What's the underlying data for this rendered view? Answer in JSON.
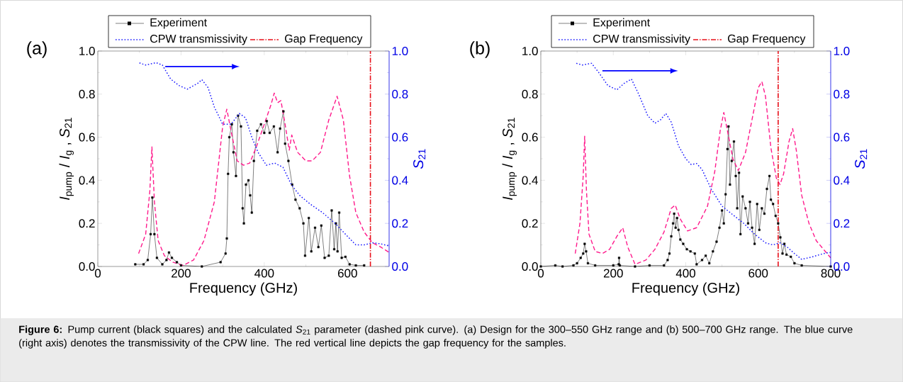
{
  "chart_data": [
    {
      "type": "line",
      "xlabel": "Frequency (GHz)",
      "ylabel": "*I*$_{pump}$ / *I*$_{g}$ , *S*$_{21}$",
      "y2label": "*S*$_{21}$",
      "legend": "top",
      "annotations": [
        "(a)",
        "**Figure 6:** Pump current (black squares) and the calculated *S*$_{21}$ parameter (dashed pink curve). (a) Design for the 300–550 GHz range and (b) 500–700 GHz range. The blue curve (right axis) denotes the transmissivity of the CPW line. The red vertical line depicts the gap frequency for the samples."
      ],
      "xlim": [
        0,
        700
      ],
      "xticks": [
        0,
        200,
        400,
        600
      ],
      "ylim": [
        0,
        1
      ],
      "yticks": [
        {
          "value": 0,
          "label": "0.0"
        },
        {
          "value": 0.2,
          "label": "0.2"
        },
        {
          "value": 0.4,
          "label": "0.4"
        },
        {
          "value": 0.6,
          "label": "0.6"
        },
        {
          "value": 0.8,
          "label": "0.8"
        },
        {
          "value": 1,
          "label": "1.0"
        }
      ],
      "y2lim": [
        0,
        1
      ],
      "y2ticks": [
        {
          "value": 0,
          "label": "0.0"
        },
        {
          "value": 0.2,
          "label": "0.2"
        },
        {
          "value": 0.4,
          "label": "0.4"
        },
        {
          "value": 0.6,
          "label": "0.6"
        },
        {
          "value": 0.8,
          "label": "0.8"
        },
        {
          "value": 1,
          "label": "1.0"
        }
      ],
      "ref_lines": [
        {
          "axis": "x",
          "value": 655,
          "label": "Gap Frequency",
          "color": "#e8101a",
          "line_style": "dashdot"
        }
      ],
      "series": [
        {
          "name": "Experiment",
          "color": "#000000",
          "marker": "square",
          "line_style": "solid",
          "x": [
            90,
            110,
            120,
            127,
            131,
            136,
            142,
            155,
            165,
            171,
            178,
            190,
            200,
            250,
            295,
            307,
            310,
            313,
            316,
            322,
            326,
            332,
            337,
            344,
            348,
            351,
            356,
            362,
            366,
            370,
            375,
            383,
            392,
            400,
            406,
            413,
            423,
            432,
            438,
            446,
            450,
            458,
            467,
            475,
            485,
            494,
            498,
            507,
            513,
            522,
            530,
            537,
            545,
            555,
            562,
            568,
            572,
            576,
            580,
            586,
            595,
            605,
            620,
            640
          ],
          "values": [
            0.01,
            0.01,
            0.03,
            0.15,
            0.32,
            0.15,
            0.04,
            0.01,
            0.03,
            0.065,
            0.04,
            0.02,
            0.005,
            0.0,
            0.02,
            0.06,
            0.13,
            0.43,
            0.6,
            0.66,
            0.53,
            0.42,
            0.7,
            0.65,
            0.27,
            0.2,
            0.38,
            0.4,
            0.33,
            0.25,
            0.49,
            0.63,
            0.66,
            0.62,
            0.675,
            0.62,
            0.65,
            0.53,
            0.64,
            0.72,
            0.57,
            0.49,
            0.38,
            0.31,
            0.27,
            0.2,
            0.05,
            0.225,
            0.07,
            0.18,
            0.09,
            0.19,
            0.04,
            0.05,
            0.26,
            0.08,
            0.2,
            0.07,
            0.25,
            0.04,
            0.045,
            0.01,
            0.005,
            0.005
          ]
        },
        {
          "color": "#ff1a8c",
          "marker": "none",
          "line_style": "dashed",
          "x": [
            98,
            115,
            125,
            130,
            136,
            145,
            160,
            180,
            205,
            230,
            255,
            280,
            300,
            310,
            320,
            335,
            350,
            365,
            380,
            400,
            416,
            424,
            432,
            440,
            450,
            460,
            466,
            480,
            500,
            515,
            535,
            555,
            575,
            590,
            605,
            620,
            640,
            660,
            680,
            700
          ],
          "values": [
            0.06,
            0.15,
            0.35,
            0.555,
            0.3,
            0.12,
            0.05,
            0.02,
            0.005,
            0.03,
            0.12,
            0.3,
            0.65,
            0.73,
            0.63,
            0.49,
            0.47,
            0.48,
            0.55,
            0.66,
            0.75,
            0.805,
            0.76,
            0.77,
            0.66,
            0.54,
            0.61,
            0.53,
            0.49,
            0.49,
            0.53,
            0.68,
            0.79,
            0.68,
            0.42,
            0.25,
            0.16,
            0.11,
            0.09,
            0.065
          ]
        },
        {
          "name": "CPW transmissivity",
          "color": "#1a1aff",
          "marker": "none",
          "line_style": "dotted",
          "axis": "y2",
          "x": [
            100,
            115,
            140,
            155,
            175,
            195,
            215,
            240,
            250,
            265,
            280,
            300,
            320,
            340,
            355,
            370,
            385,
            405,
            425,
            445,
            465,
            485,
            510,
            540,
            570,
            600,
            620,
            640,
            660,
            680,
            700
          ],
          "values": [
            0.945,
            0.935,
            0.946,
            0.935,
            0.87,
            0.84,
            0.823,
            0.85,
            0.867,
            0.83,
            0.74,
            0.66,
            0.66,
            0.71,
            0.69,
            0.6,
            0.53,
            0.47,
            0.48,
            0.46,
            0.38,
            0.33,
            0.29,
            0.25,
            0.2,
            0.14,
            0.1,
            0.1,
            0.11,
            0.105,
            0.095
          ]
        }
      ]
    },
    {
      "type": "line",
      "xlabel": "Frequency (GHz)",
      "ylabel": "*I*$_{pump}$ / *I*$_{g}$ , *S*$_{21}$",
      "y2label": "*S*$_{21}$",
      "legend": "top",
      "annotations": [
        "(b)"
      ],
      "xlim": [
        0,
        800
      ],
      "xticks": [
        0,
        200,
        400,
        600,
        800
      ],
      "ylim": [
        0,
        1
      ],
      "yticks": [
        {
          "value": 0,
          "label": "0.0"
        },
        {
          "value": 0.2,
          "label": "0.2"
        },
        {
          "value": 0.4,
          "label": "0.4"
        },
        {
          "value": 0.6,
          "label": "0.6"
        },
        {
          "value": 0.8,
          "label": "0.8"
        },
        {
          "value": 1,
          "label": "1.0"
        }
      ],
      "y2lim": [
        0,
        1
      ],
      "y2ticks": [
        {
          "value": 0,
          "label": "0.0"
        },
        {
          "value": 0.2,
          "label": "0.2"
        },
        {
          "value": 0.4,
          "label": "0.4"
        },
        {
          "value": 0.6,
          "label": "0.6"
        },
        {
          "value": 0.8,
          "label": "0.8"
        },
        {
          "value": 1,
          "label": "1.0"
        }
      ],
      "ref_lines": [
        {
          "axis": "x",
          "value": 655,
          "label": "Gap Frequency",
          "color": "#e8101a",
          "line_style": "dashdot"
        }
      ],
      "series": [
        {
          "name": "Experiment",
          "color": "#000000",
          "marker": "square",
          "line_style": "solid",
          "x": [
            0,
            40,
            60,
            90,
            100,
            110,
            117,
            121,
            125,
            130,
            150,
            200,
            215,
            216,
            218,
            260,
            300,
            340,
            350,
            355,
            360,
            365,
            368,
            372,
            376,
            380,
            385,
            393,
            403,
            413,
            425,
            430,
            445,
            455,
            465,
            475,
            485,
            493,
            500,
            505,
            510,
            515,
            518,
            522,
            527,
            533,
            538,
            542,
            547,
            551,
            557,
            565,
            572,
            577,
            583,
            590,
            597,
            603,
            610,
            617,
            624,
            631,
            635,
            641,
            648,
            655,
            661,
            667,
            672,
            678,
            690,
            700,
            720,
            800
          ],
          "values": [
            0.0,
            0.005,
            0.0,
            0.005,
            0.015,
            0.04,
            0.06,
            0.105,
            0.07,
            0.015,
            0.005,
            0.005,
            0.01,
            0.04,
            0.005,
            0.0,
            0.005,
            0.005,
            0.03,
            0.06,
            0.14,
            0.2,
            0.245,
            0.18,
            0.225,
            0.17,
            0.125,
            0.105,
            0.08,
            0.07,
            0.06,
            0.01,
            0.03,
            0.05,
            0.015,
            0.07,
            0.115,
            0.18,
            0.26,
            0.2,
            0.335,
            0.545,
            0.65,
            0.38,
            0.49,
            0.58,
            0.42,
            0.27,
            0.435,
            0.15,
            0.325,
            0.27,
            0.2,
            0.3,
            0.18,
            0.105,
            0.29,
            0.17,
            0.27,
            0.245,
            0.36,
            0.42,
            0.31,
            0.29,
            0.235,
            0.2,
            0.135,
            0.06,
            0.105,
            0.055,
            0.045,
            0.015,
            0.005,
            0.0
          ]
        },
        {
          "color": "#ff1a8c",
          "marker": "none",
          "line_style": "dashed",
          "x": [
            95,
            108,
            117,
            121,
            126,
            133,
            150,
            170,
            190,
            210,
            226,
            240,
            260,
            290,
            315,
            340,
            360,
            371,
            385,
            405,
            430,
            460,
            480,
            495,
            505,
            515,
            530,
            545,
            565,
            585,
            600,
            610,
            620,
            635,
            650,
            660,
            670,
            685,
            695,
            705,
            720,
            740,
            760,
            780,
            800
          ],
          "values": [
            0.06,
            0.2,
            0.42,
            0.605,
            0.35,
            0.15,
            0.07,
            0.06,
            0.08,
            0.14,
            0.18,
            0.09,
            0.01,
            0.03,
            0.08,
            0.16,
            0.27,
            0.285,
            0.22,
            0.165,
            0.18,
            0.28,
            0.44,
            0.63,
            0.715,
            0.63,
            0.5,
            0.445,
            0.53,
            0.7,
            0.83,
            0.858,
            0.79,
            0.55,
            0.41,
            0.38,
            0.43,
            0.58,
            0.64,
            0.54,
            0.33,
            0.2,
            0.12,
            0.08,
            0.04
          ]
        },
        {
          "name": "CPW transmissivity",
          "color": "#1a1aff",
          "marker": "none",
          "line_style": "dotted",
          "axis": "y2",
          "x": [
            98,
            115,
            140,
            160,
            185,
            210,
            230,
            250,
            270,
            295,
            315,
            330,
            345,
            360,
            380,
            400,
            415,
            430,
            445,
            470,
            500,
            530,
            560,
            590,
            620,
            640,
            660,
            680,
            700,
            720,
            750,
            780,
            800
          ],
          "values": [
            0.943,
            0.935,
            0.943,
            0.9,
            0.84,
            0.82,
            0.85,
            0.87,
            0.8,
            0.7,
            0.665,
            0.68,
            0.71,
            0.67,
            0.56,
            0.5,
            0.473,
            0.478,
            0.45,
            0.36,
            0.28,
            0.24,
            0.2,
            0.15,
            0.11,
            0.1,
            0.11,
            0.09,
            0.06,
            0.033,
            0.045,
            0.06,
            0.065
          ]
        }
      ]
    }
  ]
}
